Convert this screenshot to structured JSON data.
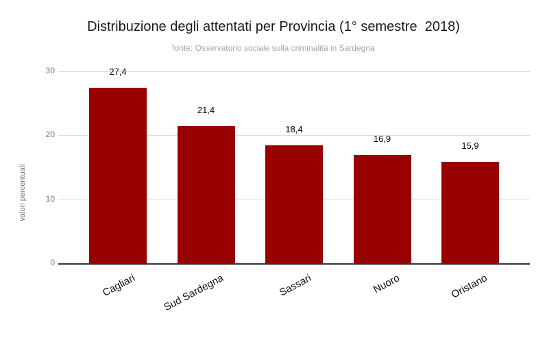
{
  "chart_data": {
    "type": "bar",
    "title": "Distribuzione degli attentati per Provincia (1° semestre  2018)",
    "subtitle": "fonte: Osservatorio sociale sulla criminalità in Sardegna",
    "categories": [
      "Cagliari",
      "Sud Sardegna",
      "Sassari",
      "Nuoro",
      "Oristano"
    ],
    "values": [
      27.4,
      21.4,
      18.4,
      16.9,
      15.9
    ],
    "value_labels": [
      "27,4",
      "21,4",
      "18,4",
      "16,9",
      "15,9"
    ],
    "xlabel": "",
    "ylabel": "valori percentuali",
    "ylim": [
      0,
      30
    ],
    "yticks": [
      0,
      10,
      20,
      30
    ],
    "grid": true,
    "legend": "none",
    "bar_color": "#990000",
    "baseline_color": "#333333",
    "gridline_color": "#dddddd",
    "title_color": "#1a1a1a",
    "subtitle_color": "#a5a5a5",
    "tick_label_color": "#757575",
    "value_label_color": "#000000",
    "category_label_color": "#111111",
    "background_color": "#ffffff"
  }
}
